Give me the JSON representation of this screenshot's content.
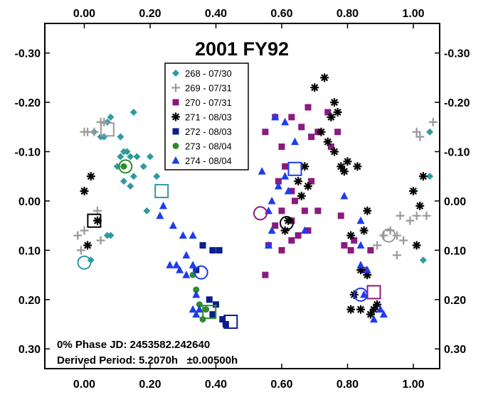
{
  "chart_data": {
    "type": "scatter",
    "title": "2001 FY92",
    "xlabel": "",
    "ylabel": "",
    "xlim": [
      -0.12,
      1.08
    ],
    "ylim": [
      0.34,
      -0.36
    ],
    "y_inverted": true,
    "grid": false,
    "x_ticks": [
      0.0,
      0.2,
      0.4,
      0.6,
      0.8,
      1.0
    ],
    "x_tick_labels": [
      "0.00",
      "0.20",
      "0.40",
      "0.60",
      "0.80",
      "1.00"
    ],
    "y_ticks": [
      -0.3,
      -0.2,
      -0.1,
      0.0,
      0.1,
      0.2,
      0.3
    ],
    "y_tick_labels": [
      "-0.30",
      "-0.20",
      "-0.10",
      "0.00",
      "0.10",
      "0.20",
      "0.30"
    ],
    "legend_position": "top-center",
    "annotations": [
      "0% Phase JD:  2453582.242640",
      "Derived Period: 5.2070h   ±0.00500h"
    ],
    "series": [
      {
        "name": "268 - 07/30",
        "marker": "diamond",
        "color": "#2e9aa0",
        "points": [
          [
            0.08,
            -0.17
          ],
          [
            0.07,
            -0.16
          ],
          [
            0.11,
            -0.13
          ],
          [
            0.15,
            -0.18
          ],
          [
            0.06,
            -0.13
          ],
          [
            0.12,
            -0.1
          ],
          [
            0.14,
            -0.09
          ],
          [
            0.11,
            -0.09
          ],
          [
            0.13,
            -0.1
          ],
          [
            0.16,
            -0.09
          ],
          [
            0.1,
            -0.07
          ],
          [
            0.2,
            -0.09
          ],
          [
            0.18,
            -0.07
          ],
          [
            0.15,
            -0.05
          ],
          [
            0.12,
            -0.04
          ],
          [
            0.14,
            -0.03
          ],
          [
            0.22,
            -0.05
          ],
          [
            0.19,
            0.02
          ],
          [
            0.07,
            0.07
          ],
          [
            0.08,
            0.07
          ],
          [
            0.02,
            0.12
          ],
          [
            1.05,
            -0.14
          ],
          [
            1.05,
            -0.05
          ],
          [
            1.03,
            0.12
          ],
          [
            0.03,
            -0.14
          ],
          [
            0.05,
            -0.13
          ]
        ]
      },
      {
        "name": "269 - 07/31",
        "marker": "plus",
        "color": "#999999",
        "points": [
          [
            0.05,
            -0.16
          ],
          [
            0.06,
            -0.16
          ],
          [
            0.01,
            -0.14
          ],
          [
            0.03,
            -0.14
          ],
          [
            0.0,
            -0.14
          ],
          [
            0.04,
            0.02
          ],
          [
            0.0,
            0.06
          ],
          [
            -0.02,
            0.07
          ],
          [
            -0.01,
            0.1
          ],
          [
            0.05,
            0.08
          ],
          [
            1.06,
            -0.16
          ],
          [
            1.01,
            -0.14
          ],
          [
            1.02,
            -0.13
          ],
          [
            0.96,
            0.03
          ],
          [
            1.01,
            0.03
          ],
          [
            1.04,
            0.03
          ],
          [
            0.99,
            0.04
          ],
          [
            0.93,
            0.06
          ],
          [
            0.91,
            0.07
          ],
          [
            0.95,
            0.07
          ],
          [
            0.97,
            0.08
          ],
          [
            0.89,
            0.09
          ],
          [
            0.95,
            0.11
          ]
        ]
      },
      {
        "name": "270 - 07/31",
        "marker": "square",
        "color": "#8b1a7e",
        "points": [
          [
            0.58,
            -0.17
          ],
          [
            0.63,
            -0.17
          ],
          [
            0.68,
            -0.19
          ],
          [
            0.74,
            -0.18
          ],
          [
            0.66,
            -0.15
          ],
          [
            0.71,
            -0.14
          ],
          [
            0.55,
            -0.14
          ],
          [
            0.69,
            -0.13
          ],
          [
            0.77,
            -0.14
          ],
          [
            0.75,
            -0.11
          ],
          [
            0.6,
            -0.11
          ],
          [
            0.61,
            -0.07
          ],
          [
            0.59,
            -0.04
          ],
          [
            0.69,
            -0.04
          ],
          [
            0.63,
            -0.02
          ],
          [
            0.64,
            0.0
          ],
          [
            0.71,
            0.02
          ],
          [
            0.6,
            0.02
          ],
          [
            0.63,
            0.04
          ],
          [
            0.67,
            0.02
          ],
          [
            0.68,
            0.06
          ],
          [
            0.65,
            0.07
          ],
          [
            0.58,
            0.05
          ],
          [
            0.6,
            0.1
          ],
          [
            0.63,
            0.08
          ],
          [
            0.56,
            0.09
          ],
          [
            0.55,
            0.15
          ],
          [
            0.78,
            0.03
          ],
          [
            0.82,
            0.08
          ],
          [
            0.79,
            0.09
          ],
          [
            0.85,
            0.14
          ],
          [
            0.87,
            0.1
          ],
          [
            0.81,
            0.1
          ]
        ]
      },
      {
        "name": "271 - 08/03",
        "marker": "asterisk",
        "color": "#000000",
        "points": [
          [
            0.0,
            -0.02
          ],
          [
            0.02,
            -0.05
          ],
          [
            0.01,
            0.09
          ],
          [
            0.04,
            0.04
          ],
          [
            0.7,
            -0.23
          ],
          [
            0.73,
            -0.25
          ],
          [
            0.76,
            -0.2
          ],
          [
            0.77,
            -0.18
          ],
          [
            0.75,
            -0.17
          ],
          [
            0.72,
            -0.14
          ],
          [
            0.74,
            -0.12
          ],
          [
            0.76,
            -0.1
          ],
          [
            0.78,
            -0.07
          ],
          [
            0.8,
            -0.08
          ],
          [
            0.79,
            -0.06
          ],
          [
            0.83,
            -0.07
          ],
          [
            0.67,
            -0.07
          ],
          [
            0.68,
            -0.03
          ],
          [
            0.65,
            -0.04
          ],
          [
            0.66,
            -0.01
          ],
          [
            0.62,
            0.04
          ],
          [
            0.61,
            0.06
          ],
          [
            1.03,
            -0.05
          ],
          [
            1.0,
            -0.02
          ],
          [
            1.02,
            0.01
          ],
          [
            0.86,
            0.02
          ],
          [
            0.85,
            0.06
          ],
          [
            0.81,
            0.07
          ],
          [
            0.84,
            0.14
          ],
          [
            0.86,
            0.15
          ],
          [
            0.82,
            0.19
          ],
          [
            0.84,
            0.22
          ],
          [
            0.88,
            0.22
          ],
          [
            0.89,
            0.21
          ],
          [
            0.87,
            0.23
          ],
          [
            0.81,
            0.22
          ],
          [
            1.01,
            0.09
          ]
        ]
      },
      {
        "name": "272 - 08/03",
        "marker": "square",
        "color": "#0a1e8c",
        "points": [
          [
            0.39,
            0.1
          ],
          [
            0.41,
            0.1
          ],
          [
            0.36,
            0.09
          ],
          [
            0.34,
            0.14
          ],
          [
            0.38,
            0.2
          ],
          [
            0.4,
            0.21
          ],
          [
            0.39,
            0.23
          ],
          [
            0.43,
            0.25
          ],
          [
            0.42,
            0.24
          ]
        ]
      },
      {
        "name": "273 - 08/04",
        "marker": "circle",
        "color": "#2e8b2e",
        "points": [
          [
            0.12,
            -0.07
          ],
          [
            0.34,
            0.18
          ],
          [
            0.33,
            0.15
          ],
          [
            0.35,
            0.21
          ],
          [
            0.37,
            0.22
          ],
          [
            0.36,
            0.24
          ]
        ]
      },
      {
        "name": "274 - 08/04",
        "marker": "triangle",
        "color": "#1e3cf0",
        "points": [
          [
            0.58,
            -0.17
          ],
          [
            0.61,
            -0.16
          ],
          [
            0.64,
            -0.12
          ],
          [
            0.54,
            -0.06
          ],
          [
            0.61,
            -0.05
          ],
          [
            0.59,
            -0.03
          ],
          [
            0.57,
            0.0
          ],
          [
            0.62,
            -0.02
          ],
          [
            0.56,
            0.02
          ],
          [
            0.57,
            0.06
          ],
          [
            0.67,
            0.06
          ],
          [
            0.56,
            0.09
          ],
          [
            0.79,
            -0.01
          ],
          [
            0.84,
            0.04
          ],
          [
            0.84,
            0.09
          ],
          [
            0.84,
            0.13
          ],
          [
            0.86,
            0.14
          ],
          [
            0.85,
            0.19
          ],
          [
            0.9,
            0.22
          ],
          [
            0.91,
            0.23
          ],
          [
            0.88,
            0.24
          ],
          [
            0.23,
            0.03
          ],
          [
            0.24,
            0.01
          ],
          [
            0.27,
            0.05
          ],
          [
            0.3,
            0.07
          ],
          [
            0.33,
            0.07
          ],
          [
            0.31,
            0.11
          ],
          [
            0.26,
            0.13
          ],
          [
            0.28,
            0.13
          ],
          [
            0.33,
            0.13
          ],
          [
            0.29,
            0.14
          ],
          [
            0.31,
            0.15
          ],
          [
            0.34,
            0.19
          ],
          [
            0.33,
            0.22
          ],
          [
            0.35,
            0.22
          ],
          [
            0.34,
            0.23
          ]
        ]
      }
    ],
    "rings": [
      {
        "shape": "square",
        "color": "#999999",
        "x": 0.07,
        "y": -0.145
      },
      {
        "shape": "square",
        "color": "#2e9aa0",
        "x": 0.235,
        "y": -0.02
      },
      {
        "shape": "circle",
        "color": "#2e8b2e",
        "x": 0.125,
        "y": -0.07
      },
      {
        "shape": "square",
        "color": "#000000",
        "x": 0.03,
        "y": 0.04
      },
      {
        "shape": "circle",
        "color": "#2e9aa0",
        "x": 0.0,
        "y": 0.125
      },
      {
        "shape": "circle",
        "color": "#8b1a7e",
        "x": 0.535,
        "y": 0.025
      },
      {
        "shape": "square",
        "color": "#1e3cf0",
        "x": 0.64,
        "y": -0.065
      },
      {
        "shape": "circle",
        "color": "#000000",
        "x": 0.615,
        "y": 0.045
      },
      {
        "shape": "circle",
        "color": "#1e3cf0",
        "x": 0.355,
        "y": 0.145
      },
      {
        "shape": "square",
        "color": "#2e8b2e",
        "x": 0.38,
        "y": 0.225
      },
      {
        "shape": "square",
        "color": "#0a1e8c",
        "x": 0.445,
        "y": 0.245
      },
      {
        "shape": "circle",
        "color": "#999999",
        "x": 0.925,
        "y": 0.07
      },
      {
        "shape": "circle",
        "color": "#1e3cf0",
        "x": 0.84,
        "y": 0.19
      },
      {
        "shape": "square",
        "color": "#8b1a7e",
        "x": 0.88,
        "y": 0.185
      }
    ]
  }
}
